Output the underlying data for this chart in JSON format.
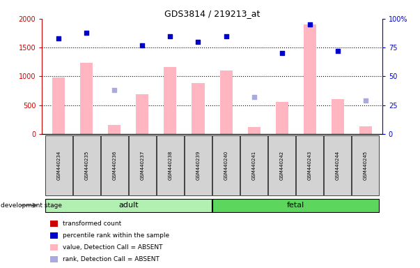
{
  "title": "GDS3814 / 219213_at",
  "samples": [
    "GSM440234",
    "GSM440235",
    "GSM440236",
    "GSM440237",
    "GSM440238",
    "GSM440239",
    "GSM440240",
    "GSM440241",
    "GSM440242",
    "GSM440243",
    "GSM440244",
    "GSM440245"
  ],
  "bar_values": [
    980,
    1230,
    160,
    690,
    1160,
    880,
    1100,
    125,
    560,
    1900,
    610,
    130
  ],
  "dot_values_rank": [
    83,
    88,
    38,
    77,
    85,
    80,
    85,
    32,
    70,
    95,
    72,
    29
  ],
  "bar_absent": [
    false,
    false,
    true,
    false,
    false,
    false,
    false,
    true,
    false,
    false,
    false,
    true
  ],
  "dot_absent": [
    false,
    false,
    true,
    false,
    false,
    false,
    false,
    true,
    false,
    false,
    false,
    true
  ],
  "group_labels": [
    "adult",
    "fetal"
  ],
  "group_adult": [
    0,
    5
  ],
  "group_fetal": [
    6,
    11
  ],
  "ylim_left": [
    0,
    2000
  ],
  "ylim_right": [
    0,
    100
  ],
  "yticks_left": [
    0,
    500,
    1000,
    1500,
    2000
  ],
  "ytick_labels_left": [
    "0",
    "500",
    "1000",
    "1500",
    "2000"
  ],
  "yticks_right": [
    0,
    25,
    50,
    75,
    100
  ],
  "ytick_labels_right": [
    "0",
    "25",
    "50",
    "75",
    "100%"
  ],
  "bar_color": "#ffb6c1",
  "dot_color_present": "#0000cc",
  "dot_color_absent": "#aaaadd",
  "dot_size": 25,
  "bar_width": 0.45,
  "legend_items": [
    {
      "label": "transformed count",
      "color": "#cc0000"
    },
    {
      "label": "percentile rank within the sample",
      "color": "#0000cc"
    },
    {
      "label": "value, Detection Call = ABSENT",
      "color": "#ffb6c1"
    },
    {
      "label": "rank, Detection Call = ABSENT",
      "color": "#aaaadd"
    }
  ],
  "yaxis_left_color": "#cc0000",
  "yaxis_right_color": "#0000cc",
  "background_color": "#ffffff",
  "sample_box_color": "#d3d3d3",
  "adult_color": "#b2f0b2",
  "fetal_color": "#5cd65c"
}
